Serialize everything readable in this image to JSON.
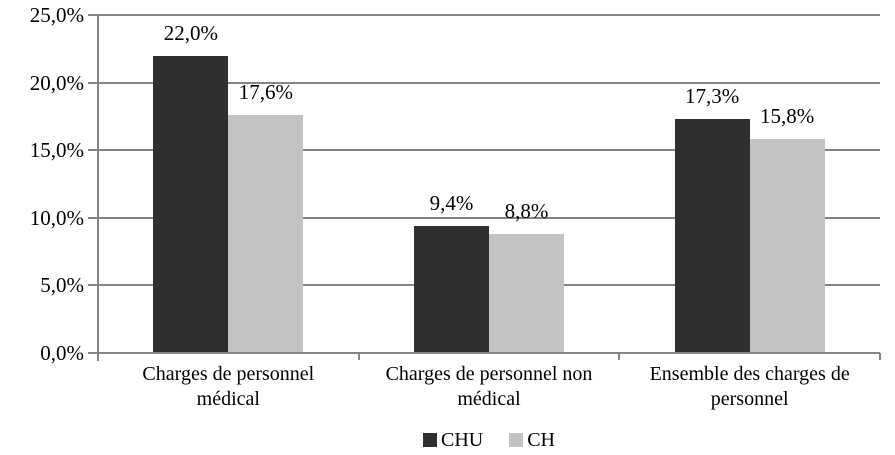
{
  "chart_data": {
    "type": "bar",
    "title": "",
    "xlabel": "",
    "ylabel": "",
    "categories": [
      "Charges de personnel médical",
      "Charges de personnel non médical",
      "Ensemble des charges de personnel"
    ],
    "category_lines": [
      [
        "Charges de personnel",
        "médical"
      ],
      [
        "Charges de personnel non",
        "médical"
      ],
      [
        "Ensemble des charges de",
        "personnel"
      ]
    ],
    "series": [
      {
        "name": "CHU",
        "values": [
          22.0,
          9.4,
          17.3
        ],
        "labels": [
          "22,0%",
          "9,4%",
          "17,3%"
        ],
        "color": "#2f2f2f"
      },
      {
        "name": "CH",
        "values": [
          17.6,
          8.8,
          15.8
        ],
        "labels": [
          "17,6%",
          "8,8%",
          "15,8%"
        ],
        "color": "#c3c3c3"
      }
    ],
    "y_axis": {
      "min": 0,
      "max": 25,
      "tick_step": 5,
      "tick_values": [
        0,
        5,
        10,
        15,
        20,
        25
      ],
      "tick_labels": [
        "0,0%",
        "5,0%",
        "10,0%",
        "15,0%",
        "20,0%",
        "25,0%"
      ]
    },
    "legend": {
      "position": "bottom",
      "entries": [
        "CHU",
        "CH"
      ]
    },
    "grid": true,
    "colors": {
      "axis_and_grid": "#848484",
      "text": "#000000",
      "background": "#ffffff"
    }
  }
}
